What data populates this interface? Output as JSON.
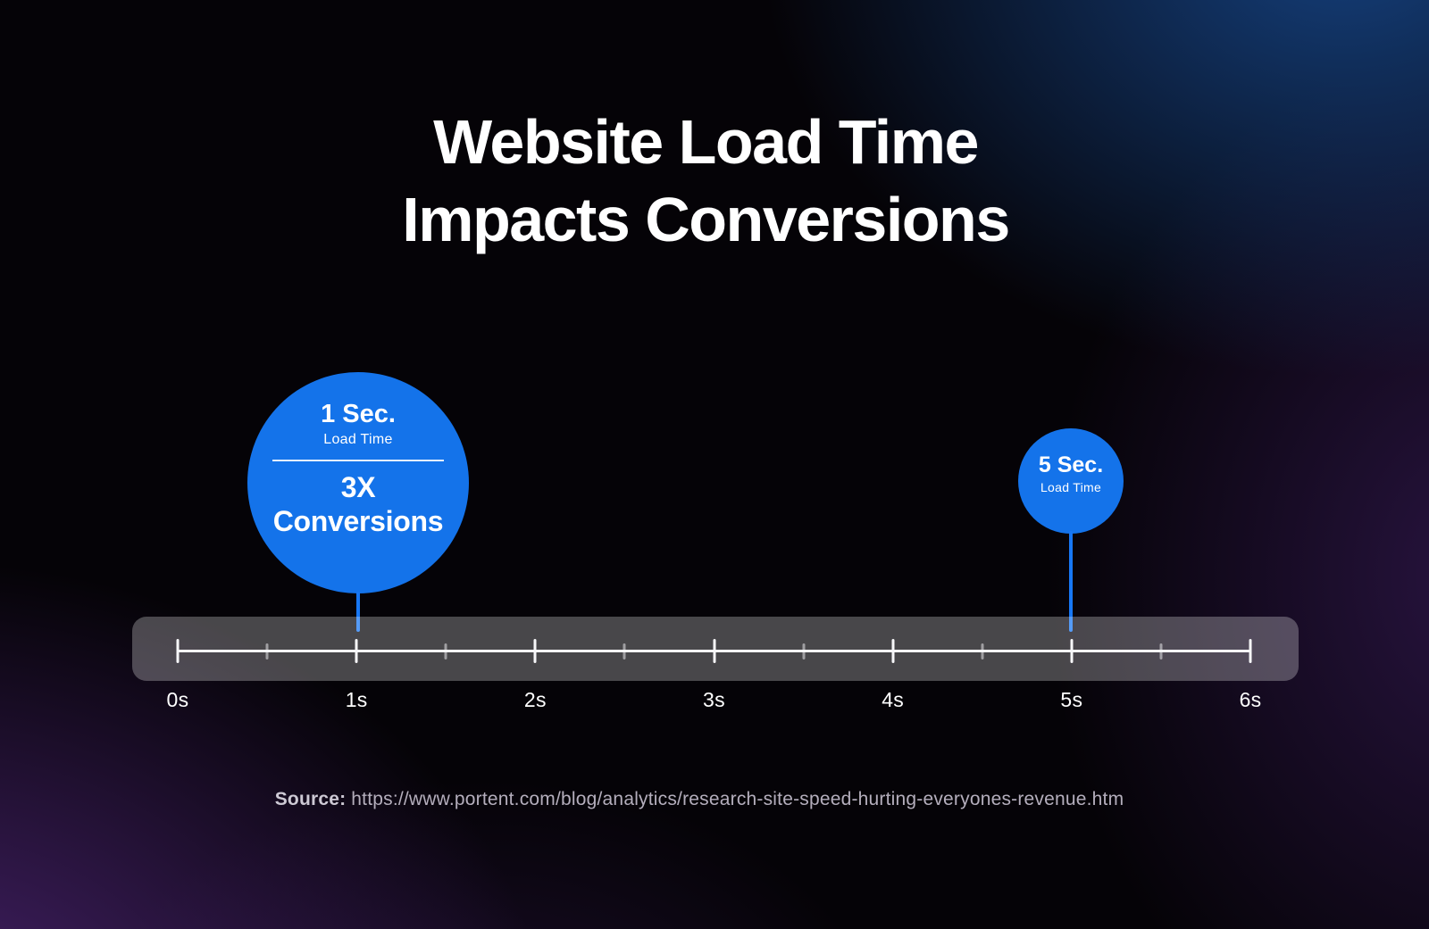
{
  "title": {
    "line1": "Website Load Time",
    "line2": "Impacts Conversions"
  },
  "markers": {
    "one_sec": {
      "time": "1 Sec.",
      "time_sub": "Load Time",
      "metric_value": "3X",
      "metric_label": "Conversions"
    },
    "five_sec": {
      "time": "5 Sec.",
      "time_sub": "Load Time"
    }
  },
  "timeline": {
    "tick_labels": [
      "0s",
      "1s",
      "2s",
      "3s",
      "4s",
      "5s",
      "6s"
    ]
  },
  "source": {
    "label": "Source:",
    "url": "https://www.portent.com/blog/analytics/research-site-speed-hurting-everyones-revenue.htm"
  },
  "colors": {
    "accent_blue": "#1473EA",
    "connector_blue": "#1777F5",
    "background_base": "#050307",
    "glow_top_right_blue": "#164587",
    "glow_purple": "#562983",
    "bar_fill": "rgba(255,255,255,0.27)",
    "text_white": "#ffffff",
    "source_text": "#b4aebc"
  },
  "chart_data": {
    "type": "scatter",
    "title": "Website Load Time Impacts Conversions",
    "xlabel": "",
    "ylabel": "",
    "xlim": [
      0,
      6
    ],
    "x_unit": "seconds",
    "x_tick_labels": [
      "0s",
      "1s",
      "2s",
      "3s",
      "4s",
      "5s",
      "6s"
    ],
    "minor_tick_interval_s": 0.5,
    "legend": false,
    "points": [
      {
        "x": 1,
        "label": "1 Sec. Load Time",
        "annotation": "3X Conversions",
        "bubble_emphasis": "large"
      },
      {
        "x": 5,
        "label": "5 Sec. Load Time",
        "annotation": "",
        "bubble_emphasis": "small"
      }
    ],
    "source": "https://www.portent.com/blog/analytics/research-site-speed-hurting-everyones-revenue.htm"
  }
}
